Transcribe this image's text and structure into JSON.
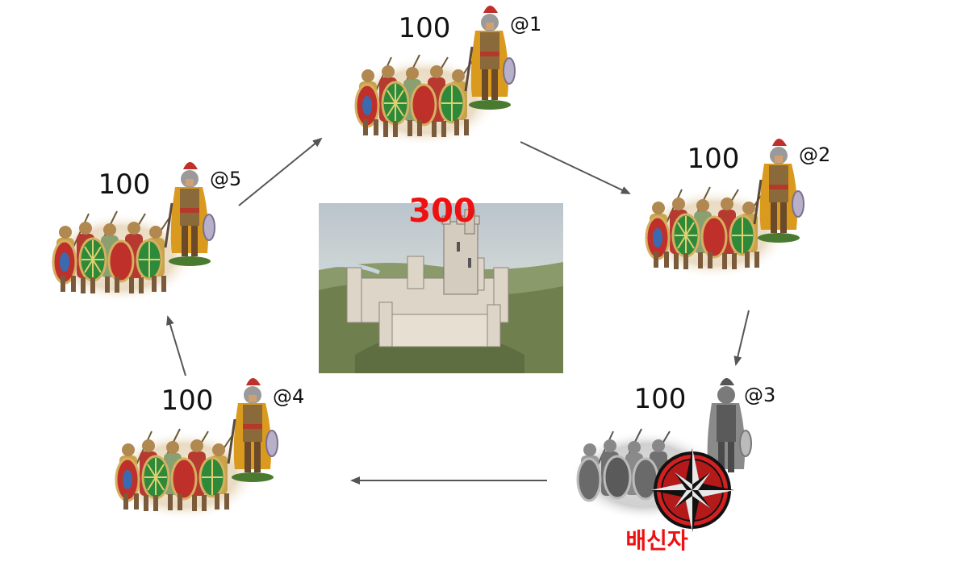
{
  "center": {
    "value": "300"
  },
  "generals": [
    {
      "id": "@1",
      "value": "100",
      "traitor": false
    },
    {
      "id": "@2",
      "value": "100",
      "traitor": false
    },
    {
      "id": "@3",
      "value": "100",
      "traitor": true
    },
    {
      "id": "@4",
      "value": "100",
      "traitor": false
    },
    {
      "id": "@5",
      "value": "100",
      "traitor": false
    }
  ],
  "traitor_label": "배신자",
  "colors": {
    "accent": "#ee1111",
    "arrow": "#555555",
    "cloak": "#d99a1e",
    "armor": "#8a6a3a",
    "shield_green": "#2e8a3a",
    "shield_red": "#c0302a",
    "shield_blue": "#3a6ab0"
  },
  "icons": [
    "army-illustration-icon",
    "general-figure-icon",
    "castle-illustration-icon",
    "compass-rose-icon"
  ]
}
